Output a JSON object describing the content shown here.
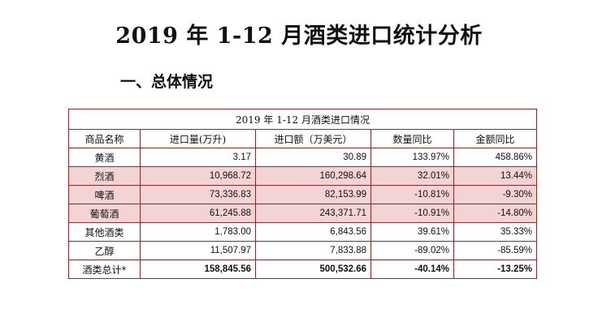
{
  "document": {
    "title": "2019 年 1-12 月酒类进口统计分析",
    "section_heading": "一、总体情况"
  },
  "table": {
    "caption": "2019 年 1-12 月酒类进口情况",
    "headers": [
      "商品名称",
      "进口量(万升)",
      "进口额（万美元）",
      "数量同比",
      "金额同比"
    ],
    "rows": [
      {
        "name": "黄酒",
        "volume": "3.17",
        "value": "30.89",
        "qty_yoy": "133.97%",
        "amt_yoy": "458.86%",
        "highlight": false
      },
      {
        "name": "烈酒",
        "volume": "10,968.72",
        "value": "160,298.64",
        "qty_yoy": "32.01%",
        "amt_yoy": "13.44%",
        "highlight": true
      },
      {
        "name": "啤酒",
        "volume": "73,336.83",
        "value": "82,153.99",
        "qty_yoy": "-10.81%",
        "amt_yoy": "-9.30%",
        "highlight": true
      },
      {
        "name": "葡萄酒",
        "volume": "61,245.88",
        "value": "243,371.71",
        "qty_yoy": "-10.91%",
        "amt_yoy": "-14.80%",
        "highlight": true
      },
      {
        "name": "其他酒类",
        "volume": "1,783.00",
        "value": "6,843.56",
        "qty_yoy": "39.61%",
        "amt_yoy": "35.33%",
        "highlight": false
      },
      {
        "name": "乙醇",
        "volume": "11,507.97",
        "value": "7,833.88",
        "qty_yoy": "-89.02%",
        "amt_yoy": "-85.59%",
        "highlight": false
      },
      {
        "name": "酒类总计*",
        "volume": "158,845.56",
        "value": "500,532.66",
        "qty_yoy": "-40.14%",
        "amt_yoy": "-13.25%",
        "highlight": false,
        "total": true
      }
    ]
  },
  "colors": {
    "border": "#8a2b2b",
    "highlight": "#f3d3d4"
  }
}
